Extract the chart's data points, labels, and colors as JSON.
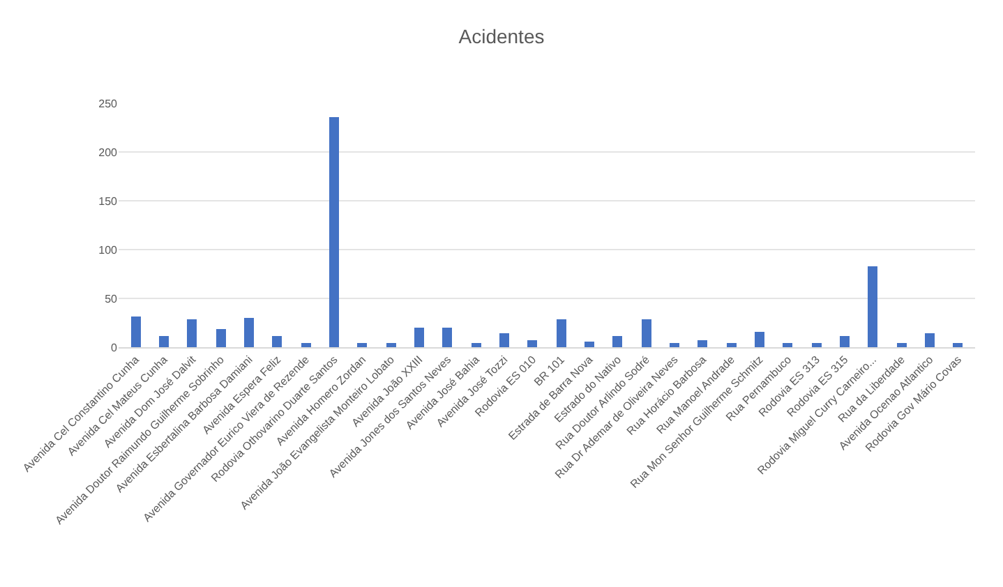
{
  "chart_data": {
    "type": "bar",
    "title": "Acidentes",
    "categories": [
      "Avenida Cel Constantino Cunha",
      "Avenida Cel Mateus Cunha",
      "Avenida Dom José Dalvit",
      "Avenida Doutor Raimundo Guilherme Sobrinho",
      "Avenida Esbertalina Barbosa Damiani",
      "Avenida Espera Feliz",
      "Avenida Governador Eurico Viera de Rezende",
      "Rodovia Othovarino Duarte Santos",
      "Avenida Homero Zordan",
      "Avenida João Evangelista Monteiro Lobato",
      "Avenida João XXIII",
      "Avenida Jones dos Santos Neves",
      "Avenida José Bahia",
      "Avenida José Tozzi",
      "Rodovia ES 010",
      "BR 101",
      "Estrada de Barra Nova",
      "Estrado do Nativo",
      "Rua Doutor Arlindo Sodré",
      "Rua Dr Ademar de Oliveira Neves",
      "Rua Horácio Barbosa",
      "Rua Manoel Andrade",
      "Rua Mon Senhor Guilherme Schmitz",
      "Rua Pernambuco",
      "Rodovia ES 313",
      "Rodovia ES 315",
      "Rodovia Miguel Curry Carneiro...",
      "Rua da Liberdade",
      "Avenida Ocenao Atlantico",
      "Rodovia Gov Mário Covas"
    ],
    "values": [
      31,
      12,
      28,
      19,
      30,
      11,
      5,
      236,
      4,
      5,
      20,
      20,
      4,
      15,
      7,
      28,
      6,
      11,
      28,
      4,
      7,
      5,
      16,
      4,
      4,
      12,
      83,
      4,
      15,
      4
    ],
    "color": "#4472c4",
    "ylim": [
      0,
      250
    ],
    "yticks": [
      0,
      50,
      100,
      150,
      200,
      250
    ],
    "grid": "y",
    "legend": false
  }
}
